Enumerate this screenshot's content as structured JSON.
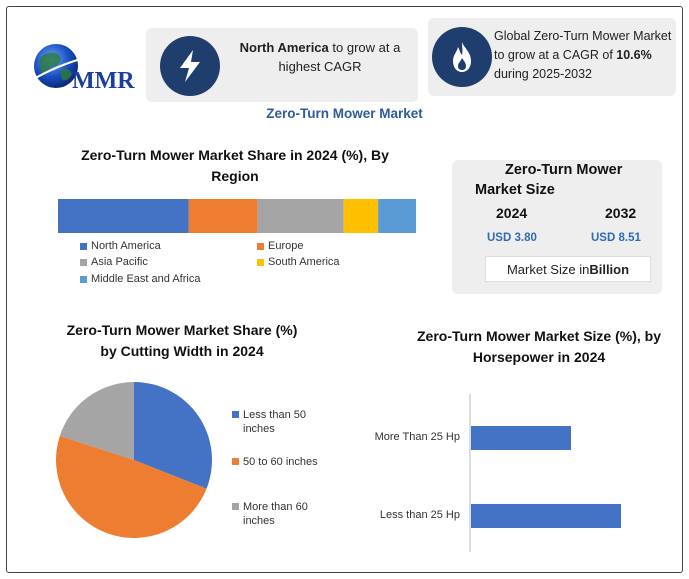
{
  "logo": {
    "text": "MMR"
  },
  "highlight1": {
    "bold": "North America",
    "rest": " to grow at a highest CAGR"
  },
  "highlight2": {
    "pre": "Global Zero-Turn Mower Market to grow at a CAGR of ",
    "bold": "10.6%",
    "post": " during 2025-2032"
  },
  "main_title": "Zero-Turn Mower Market",
  "size_panel": {
    "title": "Zero-Turn Mower Market Size",
    "year1": "2024",
    "year2": "2032",
    "value1": "USD 3.80",
    "value2": "USD 8.51",
    "unit_pre": "Market Size in ",
    "unit_bold": "Billion"
  },
  "colors": {
    "blue": "#4472c4",
    "orange": "#ed7d31",
    "grey": "#a5a5a5",
    "yellow": "#ffc000",
    "lightblue": "#5b9bd5",
    "accent": "#2e5b9a",
    "icon_bg": "#1f3e6e"
  },
  "chart_data": [
    {
      "type": "bar",
      "orientation": "horizontal-stacked",
      "title": "Zero-Turn Mower Market Share in 2024 (%), By Region",
      "series": [
        {
          "name": "North America",
          "value": 38,
          "color": "#4472c4"
        },
        {
          "name": "Europe",
          "value": 20,
          "color": "#ed7d31"
        },
        {
          "name": "Asia Pacific",
          "value": 25,
          "color": "#a5a5a5"
        },
        {
          "name": "South America",
          "value": 10,
          "color": "#ffc000"
        },
        {
          "name": "Middle East and Africa",
          "value": 11,
          "color": "#5b9bd5"
        }
      ]
    },
    {
      "type": "pie",
      "title": "Zero-Turn Mower Market Share (%) by Cutting Width in 2024",
      "slices": [
        {
          "name": "Less than 50 inches",
          "value": 31,
          "color": "#4472c4"
        },
        {
          "name": "50 to 60 inches",
          "value": 49,
          "color": "#ed7d31"
        },
        {
          "name": "More than 60 inches",
          "value": 20,
          "color": "#a5a5a5"
        }
      ]
    },
    {
      "type": "bar",
      "orientation": "horizontal",
      "title": "Zero-Turn Mower Market Size (%), by Horsepower in 2024",
      "categories": [
        "More Than 25 Hp",
        "Less than 25 Hp"
      ],
      "values": [
        40,
        60
      ],
      "color": "#4472c4"
    }
  ]
}
